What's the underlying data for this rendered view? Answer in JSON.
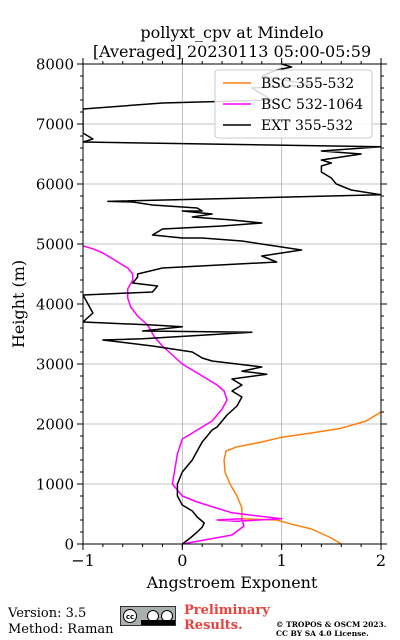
{
  "chart_data": {
    "type": "line",
    "title": "pollyxt_cpv at Mindelo",
    "subtitle": "[Averaged] 20230113 05:00-05:59",
    "xlabel": "Angstroem Exponent",
    "ylabel": "Height (m)",
    "xlim": [
      -1,
      2
    ],
    "ylim": [
      0,
      8000
    ],
    "xticks": [
      "−1",
      "0",
      "1",
      "2"
    ],
    "yticks": [
      "0",
      "1000",
      "2000",
      "3000",
      "4000",
      "5000",
      "6000",
      "7000",
      "8000"
    ],
    "grid": true,
    "legend_position": "top-right",
    "series": [
      {
        "name": "BSC 355-532",
        "color": "#ff7f0e",
        "points": [
          [
            1.6,
            0
          ],
          [
            1.5,
            100
          ],
          [
            1.3,
            250
          ],
          [
            1.1,
            330
          ],
          [
            0.95,
            400
          ],
          [
            0.6,
            420
          ],
          [
            0.6,
            600
          ],
          [
            0.55,
            800
          ],
          [
            0.48,
            1000
          ],
          [
            0.43,
            1200
          ],
          [
            0.42,
            1400
          ],
          [
            0.44,
            1550
          ],
          [
            0.55,
            1620
          ],
          [
            0.8,
            1700
          ],
          [
            1.0,
            1780
          ],
          [
            1.3,
            1850
          ],
          [
            1.6,
            1930
          ],
          [
            1.85,
            2050
          ],
          [
            2.0,
            2200
          ]
        ]
      },
      {
        "name": "BSC 532-1064",
        "color": "#ff00ff",
        "points": [
          [
            0.0,
            0
          ],
          [
            0.5,
            150
          ],
          [
            0.62,
            300
          ],
          [
            0.6,
            420
          ],
          [
            0.35,
            400
          ],
          [
            0.55,
            380
          ],
          [
            1.0,
            420
          ],
          [
            0.5,
            520
          ],
          [
            0.15,
            700
          ],
          [
            0.0,
            800
          ],
          [
            -0.1,
            1000
          ],
          [
            -0.08,
            1200
          ],
          [
            -0.05,
            1500
          ],
          [
            0.0,
            1750
          ],
          [
            0.1,
            1850
          ],
          [
            0.2,
            1950
          ],
          [
            0.3,
            2050
          ],
          [
            0.35,
            2150
          ],
          [
            0.4,
            2250
          ],
          [
            0.45,
            2400
          ],
          [
            0.42,
            2550
          ],
          [
            0.35,
            2650
          ],
          [
            0.25,
            2750
          ],
          [
            0.1,
            2900
          ],
          [
            0.0,
            3000
          ],
          [
            -0.1,
            3150
          ],
          [
            -0.2,
            3300
          ],
          [
            -0.28,
            3450
          ],
          [
            -0.35,
            3650
          ],
          [
            -0.45,
            3800
          ],
          [
            -0.52,
            3950
          ],
          [
            -0.55,
            4100
          ],
          [
            -0.55,
            4250
          ],
          [
            -0.5,
            4400
          ],
          [
            -0.5,
            4500
          ],
          [
            -0.55,
            4600
          ],
          [
            -0.6,
            4650
          ],
          [
            -0.7,
            4750
          ],
          [
            -0.8,
            4850
          ],
          [
            -0.9,
            4920
          ],
          [
            -1.0,
            4970
          ]
        ]
      },
      {
        "name": "EXT 355-532",
        "color": "#000000",
        "points": [
          [
            0.0,
            0
          ],
          [
            0.08,
            100
          ],
          [
            0.15,
            200
          ],
          [
            0.2,
            280
          ],
          [
            0.22,
            350
          ],
          [
            0.15,
            450
          ],
          [
            0.1,
            550
          ],
          [
            0.0,
            650
          ],
          [
            -0.05,
            800
          ],
          [
            -0.05,
            1000
          ],
          [
            0.0,
            1200
          ],
          [
            0.1,
            1400
          ],
          [
            0.15,
            1550
          ],
          [
            0.2,
            1700
          ],
          [
            0.25,
            1800
          ],
          [
            0.3,
            1900
          ],
          [
            0.35,
            1950
          ],
          [
            0.4,
            2050
          ],
          [
            0.45,
            2150
          ],
          [
            0.55,
            2300
          ],
          [
            0.6,
            2450
          ],
          [
            0.5,
            2550
          ],
          [
            0.6,
            2650
          ],
          [
            0.5,
            2750
          ],
          [
            0.85,
            2830
          ],
          [
            0.6,
            2880
          ],
          [
            0.8,
            2950
          ],
          [
            0.55,
            3000
          ],
          [
            0.3,
            3050
          ],
          [
            0.2,
            3100
          ],
          [
            0.1,
            3200
          ],
          [
            -0.3,
            3300
          ],
          [
            -0.8,
            3400
          ],
          [
            -0.4,
            3420
          ],
          [
            0.7,
            3530
          ],
          [
            -0.4,
            3550
          ],
          [
            0.0,
            3620
          ],
          [
            -0.3,
            3650
          ],
          [
            -1.0,
            3700
          ],
          [
            -0.9,
            3850
          ],
          [
            -1.0,
            4150
          ],
          [
            -0.3,
            4200
          ],
          [
            -0.25,
            4300
          ],
          [
            -0.5,
            4350
          ],
          [
            -0.45,
            4450
          ],
          [
            -0.45,
            4500
          ],
          [
            -0.2,
            4600
          ],
          [
            0.95,
            4700
          ],
          [
            0.8,
            4800
          ],
          [
            1.2,
            4900
          ],
          [
            1.0,
            4950
          ],
          [
            0.6,
            5050
          ],
          [
            0.2,
            5100
          ],
          [
            0.0,
            5100
          ],
          [
            -0.3,
            5150
          ],
          [
            -0.2,
            5250
          ],
          [
            0.4,
            5300
          ],
          [
            0.8,
            5350
          ],
          [
            0.5,
            5400
          ],
          [
            0.1,
            5450
          ],
          [
            0.3,
            5500
          ],
          [
            0.0,
            5550
          ],
          [
            0.2,
            5550
          ],
          [
            0.15,
            5600
          ],
          [
            -0.3,
            5650
          ],
          [
            -0.5,
            5700
          ],
          [
            -0.75,
            5710
          ],
          [
            2.0,
            5820
          ],
          [
            1.7,
            5900
          ],
          [
            1.55,
            6000
          ],
          [
            1.5,
            6100
          ],
          [
            1.4,
            6200
          ],
          [
            1.4,
            6300
          ],
          [
            1.5,
            6350
          ],
          [
            1.4,
            6400
          ],
          [
            1.8,
            6500
          ],
          [
            1.4,
            6550
          ],
          [
            2.0,
            6620
          ],
          [
            -1.0,
            6700
          ],
          [
            -0.9,
            6750
          ],
          [
            -1.0,
            6850
          ],
          [
            -1.0,
            7100
          ],
          [
            -1.0,
            7250
          ],
          [
            -0.2,
            7350
          ],
          [
            0.9,
            7400
          ],
          [
            0.7,
            7600
          ],
          [
            1.3,
            7650
          ],
          [
            0.8,
            7800
          ],
          [
            0.95,
            7900
          ],
          [
            1.1,
            7950
          ],
          [
            1.0,
            8000
          ]
        ]
      }
    ]
  },
  "footer": {
    "version": "Version: 3.5",
    "method": "Method: Raman",
    "preliminary_line1": "Preliminary",
    "preliminary_line2": "Results.",
    "copyright_line1": "© TROPOS & OSCM 2023.",
    "copyright_line2": "CC BY SA 4.0 License."
  }
}
